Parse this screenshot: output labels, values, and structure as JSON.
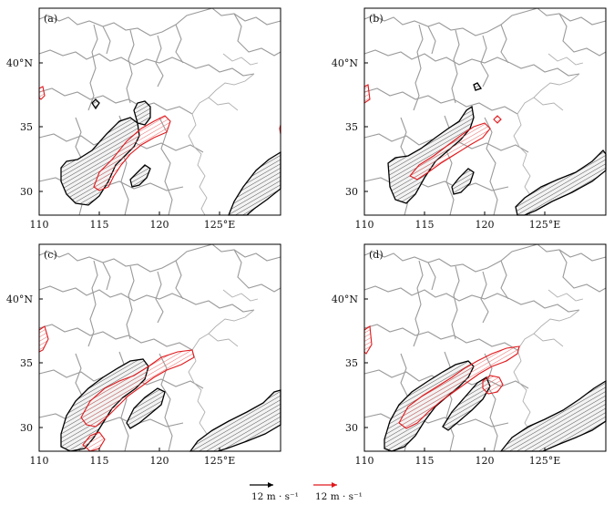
{
  "panels": [
    {
      "label": "(a)"
    },
    {
      "label": "(b)"
    },
    {
      "label": "(c)"
    },
    {
      "label": "(d)"
    }
  ],
  "axes": {
    "x_ticks": [
      "110",
      "115",
      "120",
      "125°E"
    ],
    "y_ticks": [
      "30",
      "35",
      "40°N"
    ]
  },
  "legend": {
    "items": [
      {
        "label": "12 m · s⁻¹",
        "color": "#000000"
      },
      {
        "label": "12 m · s⁻¹",
        "color": "#e0191d"
      }
    ]
  },
  "colors": {
    "black_contour": "#000000",
    "red_contour": "#e0191d",
    "borders": "#9a9a9a"
  }
}
